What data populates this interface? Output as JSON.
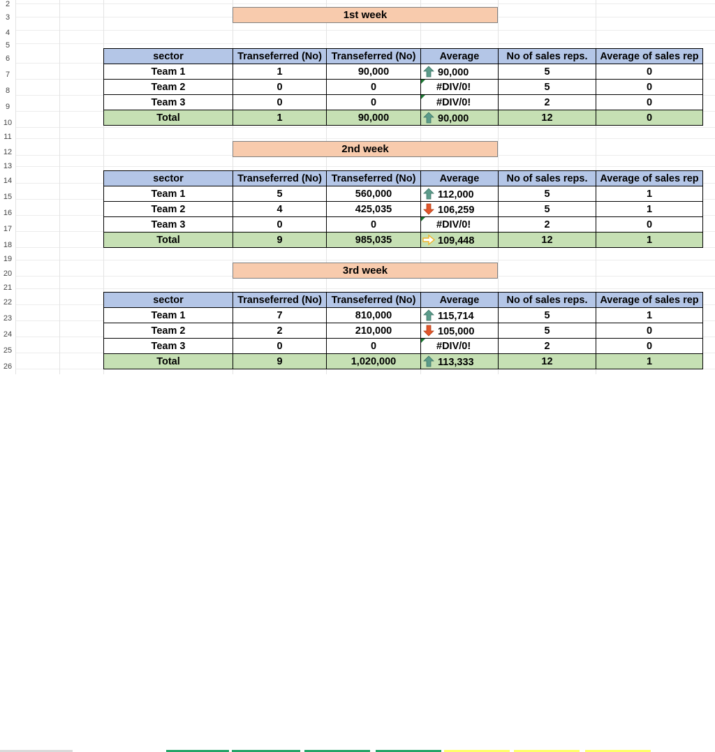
{
  "row_numbers": [
    "2",
    "3",
    "4",
    "5",
    "6",
    "7",
    "8",
    "9",
    "10",
    "11",
    "12",
    "13",
    "14",
    "15",
    "16",
    "17",
    "18",
    "19",
    "20",
    "21",
    "22",
    "23",
    "24",
    "25",
    "26"
  ],
  "columns": [
    "sector",
    "Transeferred (No)",
    "Transeferred (No)",
    "Average",
    "No of sales reps.",
    "Average of sales rep"
  ],
  "weeks": [
    {
      "title": "1st week",
      "rows": [
        {
          "sector": "Team 1",
          "c1": "1",
          "c2": "90,000",
          "avg": "90,000",
          "icon": "up",
          "reps": "5",
          "avgrep": "0"
        },
        {
          "sector": "Team 2",
          "c1": "0",
          "c2": "0",
          "avg": "#DIV/0!",
          "icon": "none",
          "reps": "5",
          "avgrep": "0"
        },
        {
          "sector": "Team 3",
          "c1": "0",
          "c2": "0",
          "avg": "#DIV/0!",
          "icon": "none",
          "reps": "2",
          "avgrep": "0"
        }
      ],
      "total": {
        "sector": "Total",
        "c1": "1",
        "c2": "90,000",
        "avg": "90,000",
        "icon": "up",
        "reps": "12",
        "avgrep": "0"
      }
    },
    {
      "title": "2nd week",
      "rows": [
        {
          "sector": "Team 1",
          "c1": "5",
          "c2": "560,000",
          "avg": "112,000",
          "icon": "up",
          "reps": "5",
          "avgrep": "1"
        },
        {
          "sector": "Team 2",
          "c1": "4",
          "c2": "425,035",
          "avg": "106,259",
          "icon": "down",
          "reps": "5",
          "avgrep": "1"
        },
        {
          "sector": "Team 3",
          "c1": "0",
          "c2": "0",
          "avg": "#DIV/0!",
          "icon": "none",
          "reps": "2",
          "avgrep": "0"
        }
      ],
      "total": {
        "sector": "Total",
        "c1": "9",
        "c2": "985,035",
        "avg": "109,448",
        "icon": "right",
        "reps": "12",
        "avgrep": "1"
      }
    },
    {
      "title": "3rd week",
      "rows": [
        {
          "sector": "Team 1",
          "c1": "7",
          "c2": "810,000",
          "avg": "115,714",
          "icon": "up",
          "reps": "5",
          "avgrep": "1"
        },
        {
          "sector": "Team 2",
          "c1": "2",
          "c2": "210,000",
          "avg": "105,000",
          "icon": "down",
          "reps": "5",
          "avgrep": "0"
        },
        {
          "sector": "Team 3",
          "c1": "0",
          "c2": "0",
          "avg": "#DIV/0!",
          "icon": "none",
          "reps": "2",
          "avgrep": "0"
        }
      ],
      "total": {
        "sector": "Total",
        "c1": "9",
        "c2": "1,020,000",
        "avg": "113,333",
        "icon": "up",
        "reps": "12",
        "avgrep": "1"
      }
    }
  ],
  "colors": {
    "week_title_bg": "#f8cbad",
    "header_bg": "#b4c6e7",
    "total_bg": "#c6e0b4",
    "up_arrow": "#5b9b8a",
    "down_arrow": "#e0552b",
    "right_arrow": "#f0b429",
    "error_marker": "#1e7b34"
  }
}
